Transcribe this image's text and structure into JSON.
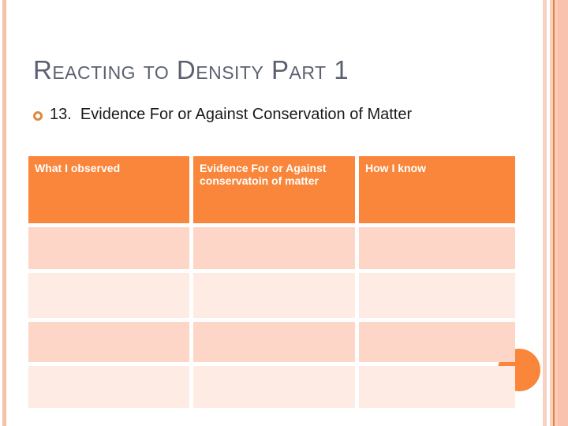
{
  "slide": {
    "title": "Reacting to Density Part 1",
    "bullet_text": "13.  Evidence For or Against Conservation of Matter"
  },
  "table": {
    "headers": [
      "What I observed",
      "Evidence For or Against conservatoin of matter",
      "How I know"
    ],
    "body_row_count": 4,
    "body_cells_empty": true
  },
  "colors": {
    "header_orange": "#f9863a",
    "row_dark_pink": "#fdd6c7",
    "row_light_pink": "#feebe3",
    "title_gray": "#5b6170",
    "bullet_ring_orange": "#e0883f",
    "edge_stripe_salmon": "#f5c2a7",
    "circle_orange": "#f9863a"
  }
}
